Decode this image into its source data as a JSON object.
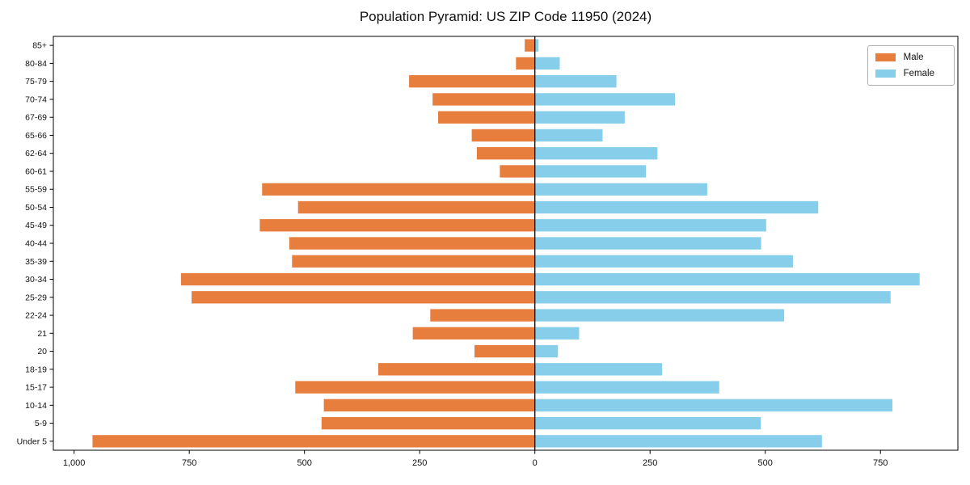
{
  "title": "Population Pyramid: US ZIP Code 11950 (2024)",
  "legend": {
    "items": [
      {
        "label": "Male",
        "color": "#e87e3e"
      },
      {
        "label": "Female",
        "color": "#87ceeb"
      }
    ]
  },
  "chart_data": {
    "type": "bar",
    "subtype": "population-pyramid",
    "orientation": "horizontal",
    "title": "Population Pyramid: US ZIP Code 11950 (2024)",
    "categories_top_to_bottom": [
      "85+",
      "80-84",
      "75-79",
      "70-74",
      "67-69",
      "65-66",
      "62-64",
      "60-61",
      "55-59",
      "50-54",
      "45-49",
      "40-44",
      "35-39",
      "30-34",
      "25-29",
      "22-24",
      "21",
      "20",
      "18-19",
      "15-17",
      "10-14",
      "5-9",
      "Under 5"
    ],
    "series": [
      {
        "name": "Male",
        "color": "#e87e3e",
        "direction": "left",
        "values": [
          22,
          41,
          273,
          222,
          210,
          137,
          126,
          76,
          592,
          514,
          597,
          533,
          527,
          768,
          745,
          227,
          265,
          131,
          340,
          520,
          458,
          463,
          960
        ]
      },
      {
        "name": "Female",
        "color": "#87ceeb",
        "direction": "right",
        "values": [
          8,
          54,
          177,
          304,
          195,
          147,
          266,
          241,
          374,
          615,
          502,
          491,
          560,
          835,
          772,
          541,
          96,
          50,
          276,
          400,
          776,
          490,
          623
        ]
      }
    ],
    "x_axis": {
      "ticks": [
        -1000,
        -750,
        -500,
        -250,
        0,
        250,
        500,
        750
      ],
      "tick_labels": [
        "1,000",
        "750",
        "500",
        "250",
        "0",
        "250",
        "500",
        "750"
      ],
      "xlim": [
        -1045,
        918
      ],
      "note": "left side = Male counts shown as absolute values"
    },
    "y_axis": {
      "label": ""
    },
    "zero_line": true,
    "grid": false,
    "legend_position": "upper right",
    "axis_color": "#000000",
    "background": "#ffffff"
  }
}
